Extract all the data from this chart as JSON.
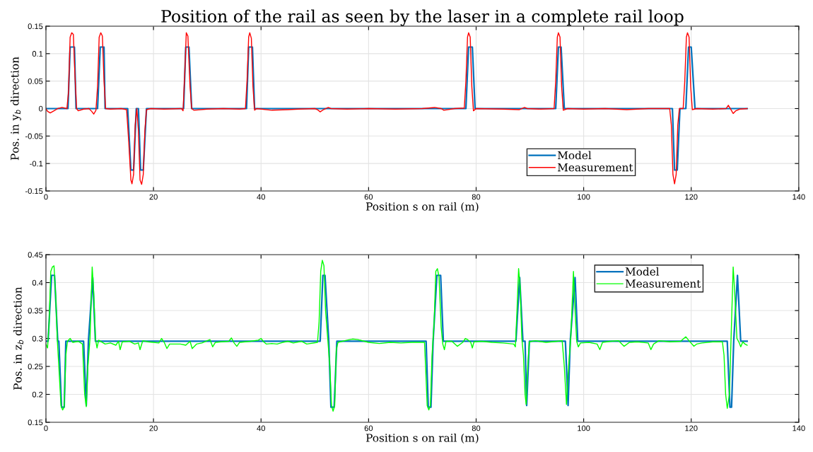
{
  "chart_data": [
    {
      "type": "line",
      "title": "Position of the rail as seen by the laser in a complete rail loop",
      "xlabel": "Position s on rail (m)",
      "ylabel": "Pos. in y$_{b}$ direction",
      "xlim": [
        0,
        140
      ],
      "xticks": [
        0,
        20,
        40,
        60,
        80,
        100,
        120,
        140
      ],
      "ylim": [
        -0.15,
        0.15
      ],
      "yticks": [
        -0.15,
        -0.1,
        -0.05,
        0,
        0.05,
        0.1,
        0.15
      ],
      "grid": true,
      "legend": "lower right",
      "series": [
        {
          "name": "Model",
          "color": "#0072bd",
          "x": [
            0,
            4.1,
            4.5,
            5.3,
            5.6,
            9.6,
            10.1,
            10.8,
            11.0,
            15.2,
            15.8,
            16.3,
            16.8,
            17.2,
            17.6,
            18.1,
            18.7,
            25.6,
            26.0,
            26.6,
            27.1,
            37.3,
            37.7,
            38.4,
            38.8,
            78.1,
            78.6,
            79.3,
            79.8,
            94.8,
            95.3,
            95.8,
            96.4,
            116.5,
            116.9,
            117.4,
            117.9,
            119.0,
            119.5,
            120.0,
            120.7,
            130.4
          ],
          "values": [
            0,
            0,
            0.112,
            0.112,
            0,
            0,
            0.112,
            0.112,
            0,
            0,
            -0.112,
            -0.112,
            0,
            0,
            -0.112,
            -0.112,
            0,
            0,
            0.112,
            0.112,
            0,
            0,
            0.112,
            0.112,
            0,
            0,
            0.112,
            0.112,
            0,
            0,
            0.112,
            0.112,
            0,
            0,
            -0.112,
            -0.112,
            0,
            0,
            0.112,
            0.112,
            0,
            0
          ]
        },
        {
          "name": "Measurement",
          "color": "#ff0000",
          "x": [
            0,
            0.3,
            0.8,
            1.5,
            2.2,
            3,
            3.9,
            4.2,
            4.5,
            4.8,
            5.1,
            5.4,
            5.7,
            6,
            7,
            8,
            8.5,
            8.9,
            9.3,
            9.6,
            9.9,
            10.2,
            10.5,
            10.8,
            11.1,
            12,
            14,
            15.0,
            15.4,
            15.8,
            16.0,
            16.3,
            16.6,
            16.9,
            17.2,
            17.5,
            17.8,
            18.1,
            18.4,
            18.7,
            19.5,
            22,
            25.2,
            25.5,
            25.8,
            26.1,
            26.4,
            26.8,
            27.1,
            27.5,
            30,
            33,
            36,
            37.1,
            37.4,
            37.7,
            37.9,
            38.2,
            38.5,
            38.8,
            39.2,
            42,
            45,
            47,
            50,
            50.5,
            51,
            51.6,
            52.5,
            53,
            56,
            60,
            65,
            70,
            72.3,
            73.5,
            74,
            76,
            77.8,
            78.1,
            78.4,
            78.6,
            78.9,
            79.2,
            79.5,
            80,
            85,
            88,
            89,
            89.5,
            92,
            94.5,
            94.8,
            95.1,
            95.3,
            95.6,
            95.9,
            96.2,
            97,
            100,
            104,
            108,
            112,
            116,
            116.3,
            116.6,
            116.9,
            117.2,
            117.5,
            117.8,
            118.5,
            118.8,
            119.1,
            119.3,
            119.6,
            119.9,
            120.2,
            121,
            124,
            126.5,
            126.9,
            127.4,
            127.8,
            128.3,
            129,
            130.4
          ],
          "values": [
            0,
            -0.005,
            -0.008,
            -0.004,
            0,
            0.002,
            0,
            0.03,
            0.13,
            0.138,
            0.135,
            0.06,
            0.0,
            -0.004,
            -0.001,
            0,
            -0.005,
            -0.01,
            -0.003,
            0.04,
            0.13,
            0.138,
            0.132,
            0.05,
            0,
            -0.001,
            0,
            -0.002,
            -0.06,
            -0.13,
            -0.137,
            -0.12,
            -0.03,
            0,
            -0.04,
            -0.13,
            -0.138,
            -0.12,
            -0.04,
            -0.002,
            0,
            -0.001,
            0,
            -0.004,
            0.06,
            0.138,
            0.132,
            0.04,
            0,
            -0.003,
            -0.001,
            0,
            -0.001,
            0,
            0.05,
            0.13,
            0.138,
            0.128,
            0.04,
            -0.003,
            0,
            -0.003,
            -0.002,
            -0.001,
            0,
            -0.002,
            -0.006,
            -0.002,
            0.002,
            0,
            -0.001,
            0,
            -0.001,
            0,
            0.002,
            0,
            -0.003,
            0,
            0.001,
            0.05,
            0.13,
            0.138,
            0.13,
            0.04,
            -0.004,
            0,
            -0.001,
            -0.002,
            0.002,
            0,
            -0.001,
            0,
            0.05,
            0.13,
            0.138,
            0.13,
            0.04,
            -0.003,
            0,
            -0.001,
            0,
            -0.002,
            0,
            0,
            -0.03,
            -0.12,
            -0.137,
            -0.12,
            -0.03,
            0,
            0,
            0.05,
            0.13,
            0.138,
            0.13,
            0.04,
            -0.002,
            0,
            -0.001,
            0,
            0.006,
            -0.002,
            -0.009,
            -0.004,
            -0.001,
            0
          ]
        }
      ]
    },
    {
      "type": "line",
      "xlabel": "Position s on rail (m)",
      "ylabel": "Pos. in z$_{b}$ direction",
      "xlim": [
        0,
        140
      ],
      "xticks": [
        0,
        20,
        40,
        60,
        80,
        100,
        120,
        140
      ],
      "ylim": [
        0.15,
        0.45
      ],
      "yticks": [
        0.15,
        0.2,
        0.25,
        0.3,
        0.35,
        0.4,
        0.45
      ],
      "grid": true,
      "legend": "upper right",
      "series": [
        {
          "name": "Model",
          "color": "#0072bd",
          "x": [
            0,
            0.4,
            1.05,
            1.6,
            2.2,
            2.4,
            2.9,
            3.4,
            3.7,
            7.0,
            7.5,
            7.9,
            8.7,
            9.2,
            51.0,
            51.5,
            51.9,
            52.6,
            53.0,
            53.6,
            54.1,
            70.7,
            71.1,
            71.6,
            72.0,
            72.7,
            73.4,
            73.9,
            87.4,
            88.1,
            88.7,
            89.1,
            89.4,
            89.9,
            96.6,
            97.1,
            97.5,
            98.4,
            98.9,
            126.7,
            127.2,
            127.5,
            127.9,
            128.6,
            129.2,
            130.4
          ],
          "values": [
            0.295,
            0.295,
            0.413,
            0.413,
            0.295,
            0.295,
            0.177,
            0.177,
            0.295,
            0.295,
            0.18,
            0.295,
            0.409,
            0.295,
            0.295,
            0.413,
            0.413,
            0.295,
            0.177,
            0.177,
            0.295,
            0.295,
            0.177,
            0.177,
            0.295,
            0.413,
            0.413,
            0.295,
            0.295,
            0.409,
            0.295,
            0.295,
            0.18,
            0.295,
            0.295,
            0.18,
            0.295,
            0.409,
            0.295,
            0.295,
            0.177,
            0.177,
            0.295,
            0.413,
            0.295,
            0.295
          ]
        },
        {
          "name": "Measurement",
          "color": "#00ff00",
          "x": [
            0,
            0.3,
            0.6,
            0.9,
            1.2,
            1.5,
            1.8,
            2.1,
            2.4,
            2.8,
            3.1,
            3.4,
            3.7,
            4.0,
            4.5,
            5,
            6,
            6.8,
            7.2,
            7.5,
            7.8,
            8.2,
            8.6,
            8.9,
            9.2,
            9.5,
            9.8,
            11,
            12,
            13,
            13.5,
            13.8,
            14.2,
            15.5,
            16.5,
            17.2,
            17.5,
            18,
            19,
            20,
            21,
            21.5,
            22,
            22.5,
            23,
            24,
            25,
            26,
            26.8,
            27.2,
            28,
            29,
            30,
            30.5,
            31,
            31.5,
            32.5,
            34,
            34.5,
            35,
            35.5,
            36,
            38,
            39.5,
            40,
            40.5,
            41,
            42,
            43,
            44,
            45,
            46,
            47.5,
            48.5,
            50.5,
            50.8,
            51.1,
            51.4,
            51.7,
            52.0,
            52.4,
            52.8,
            53.1,
            53.4,
            53.7,
            54.0,
            54.3,
            56,
            57,
            58,
            60,
            62,
            64,
            66,
            68,
            70.4,
            70.6,
            70.9,
            71.2,
            71.5,
            71.8,
            72.2,
            72.5,
            72.8,
            73.1,
            73.5,
            73.8,
            74.1,
            74.4,
            75.5,
            76.5,
            77.5,
            78,
            78.4,
            79,
            79.3,
            79.6,
            81,
            83,
            85,
            87,
            87.3,
            87.6,
            87.9,
            88.2,
            88.5,
            88.8,
            89.1,
            89.3,
            89.6,
            89.9,
            91,
            93,
            95,
            96,
            96.4,
            96.8,
            97.2,
            97.6,
            98.1,
            98.4,
            98.7,
            99.0,
            99.4,
            101,
            102.5,
            103,
            103.5,
            105,
            106.5,
            107.5,
            108.5,
            110,
            112,
            112.5,
            113,
            114,
            116,
            118,
            119,
            119.5,
            120.5,
            121,
            122,
            124,
            125.8,
            126.1,
            126.4,
            126.7,
            127.1,
            127.5,
            127.8,
            128.1,
            128.5,
            128.9,
            129.2,
            129.6,
            130,
            130.4
          ],
          "values": [
            0.29,
            0.283,
            0.33,
            0.42,
            0.428,
            0.43,
            0.38,
            0.3,
            0.25,
            0.18,
            0.172,
            0.178,
            0.27,
            0.295,
            0.3,
            0.293,
            0.295,
            0.29,
            0.2,
            0.178,
            0.25,
            0.3,
            0.428,
            0.38,
            0.3,
            0.283,
            0.297,
            0.29,
            0.292,
            0.288,
            0.295,
            0.28,
            0.294,
            0.295,
            0.29,
            0.292,
            0.28,
            0.296,
            0.294,
            0.293,
            0.292,
            0.3,
            0.293,
            0.282,
            0.29,
            0.29,
            0.29,
            0.288,
            0.295,
            0.282,
            0.29,
            0.292,
            0.296,
            0.298,
            0.285,
            0.293,
            0.294,
            0.295,
            0.301,
            0.292,
            0.286,
            0.293,
            0.295,
            0.297,
            0.3,
            0.294,
            0.29,
            0.291,
            0.29,
            0.293,
            0.295,
            0.292,
            0.295,
            0.29,
            0.293,
            0.33,
            0.42,
            0.44,
            0.43,
            0.35,
            0.3,
            0.25,
            0.18,
            0.17,
            0.18,
            0.28,
            0.293,
            0.297,
            0.299,
            0.298,
            0.293,
            0.291,
            0.293,
            0.292,
            0.293,
            0.293,
            0.25,
            0.18,
            0.172,
            0.18,
            0.27,
            0.33,
            0.42,
            0.425,
            0.41,
            0.32,
            0.29,
            0.28,
            0.295,
            0.295,
            0.286,
            0.293,
            0.3,
            0.298,
            0.293,
            0.283,
            0.294,
            0.295,
            0.293,
            0.292,
            0.29,
            0.285,
            0.35,
            0.425,
            0.39,
            0.3,
            0.27,
            0.2,
            0.182,
            0.25,
            0.294,
            0.296,
            0.293,
            0.295,
            0.296,
            0.25,
            0.182,
            0.25,
            0.3,
            0.42,
            0.35,
            0.295,
            0.285,
            0.292,
            0.293,
            0.29,
            0.28,
            0.293,
            0.295,
            0.296,
            0.286,
            0.293,
            0.294,
            0.292,
            0.28,
            0.29,
            0.296,
            0.294,
            0.295,
            0.303,
            0.297,
            0.286,
            0.29,
            0.292,
            0.294,
            0.294,
            0.27,
            0.2,
            0.175,
            0.2,
            0.33,
            0.428,
            0.38,
            0.3,
            0.293,
            0.285,
            0.294,
            0.29,
            0.288
          ]
        }
      ]
    }
  ]
}
